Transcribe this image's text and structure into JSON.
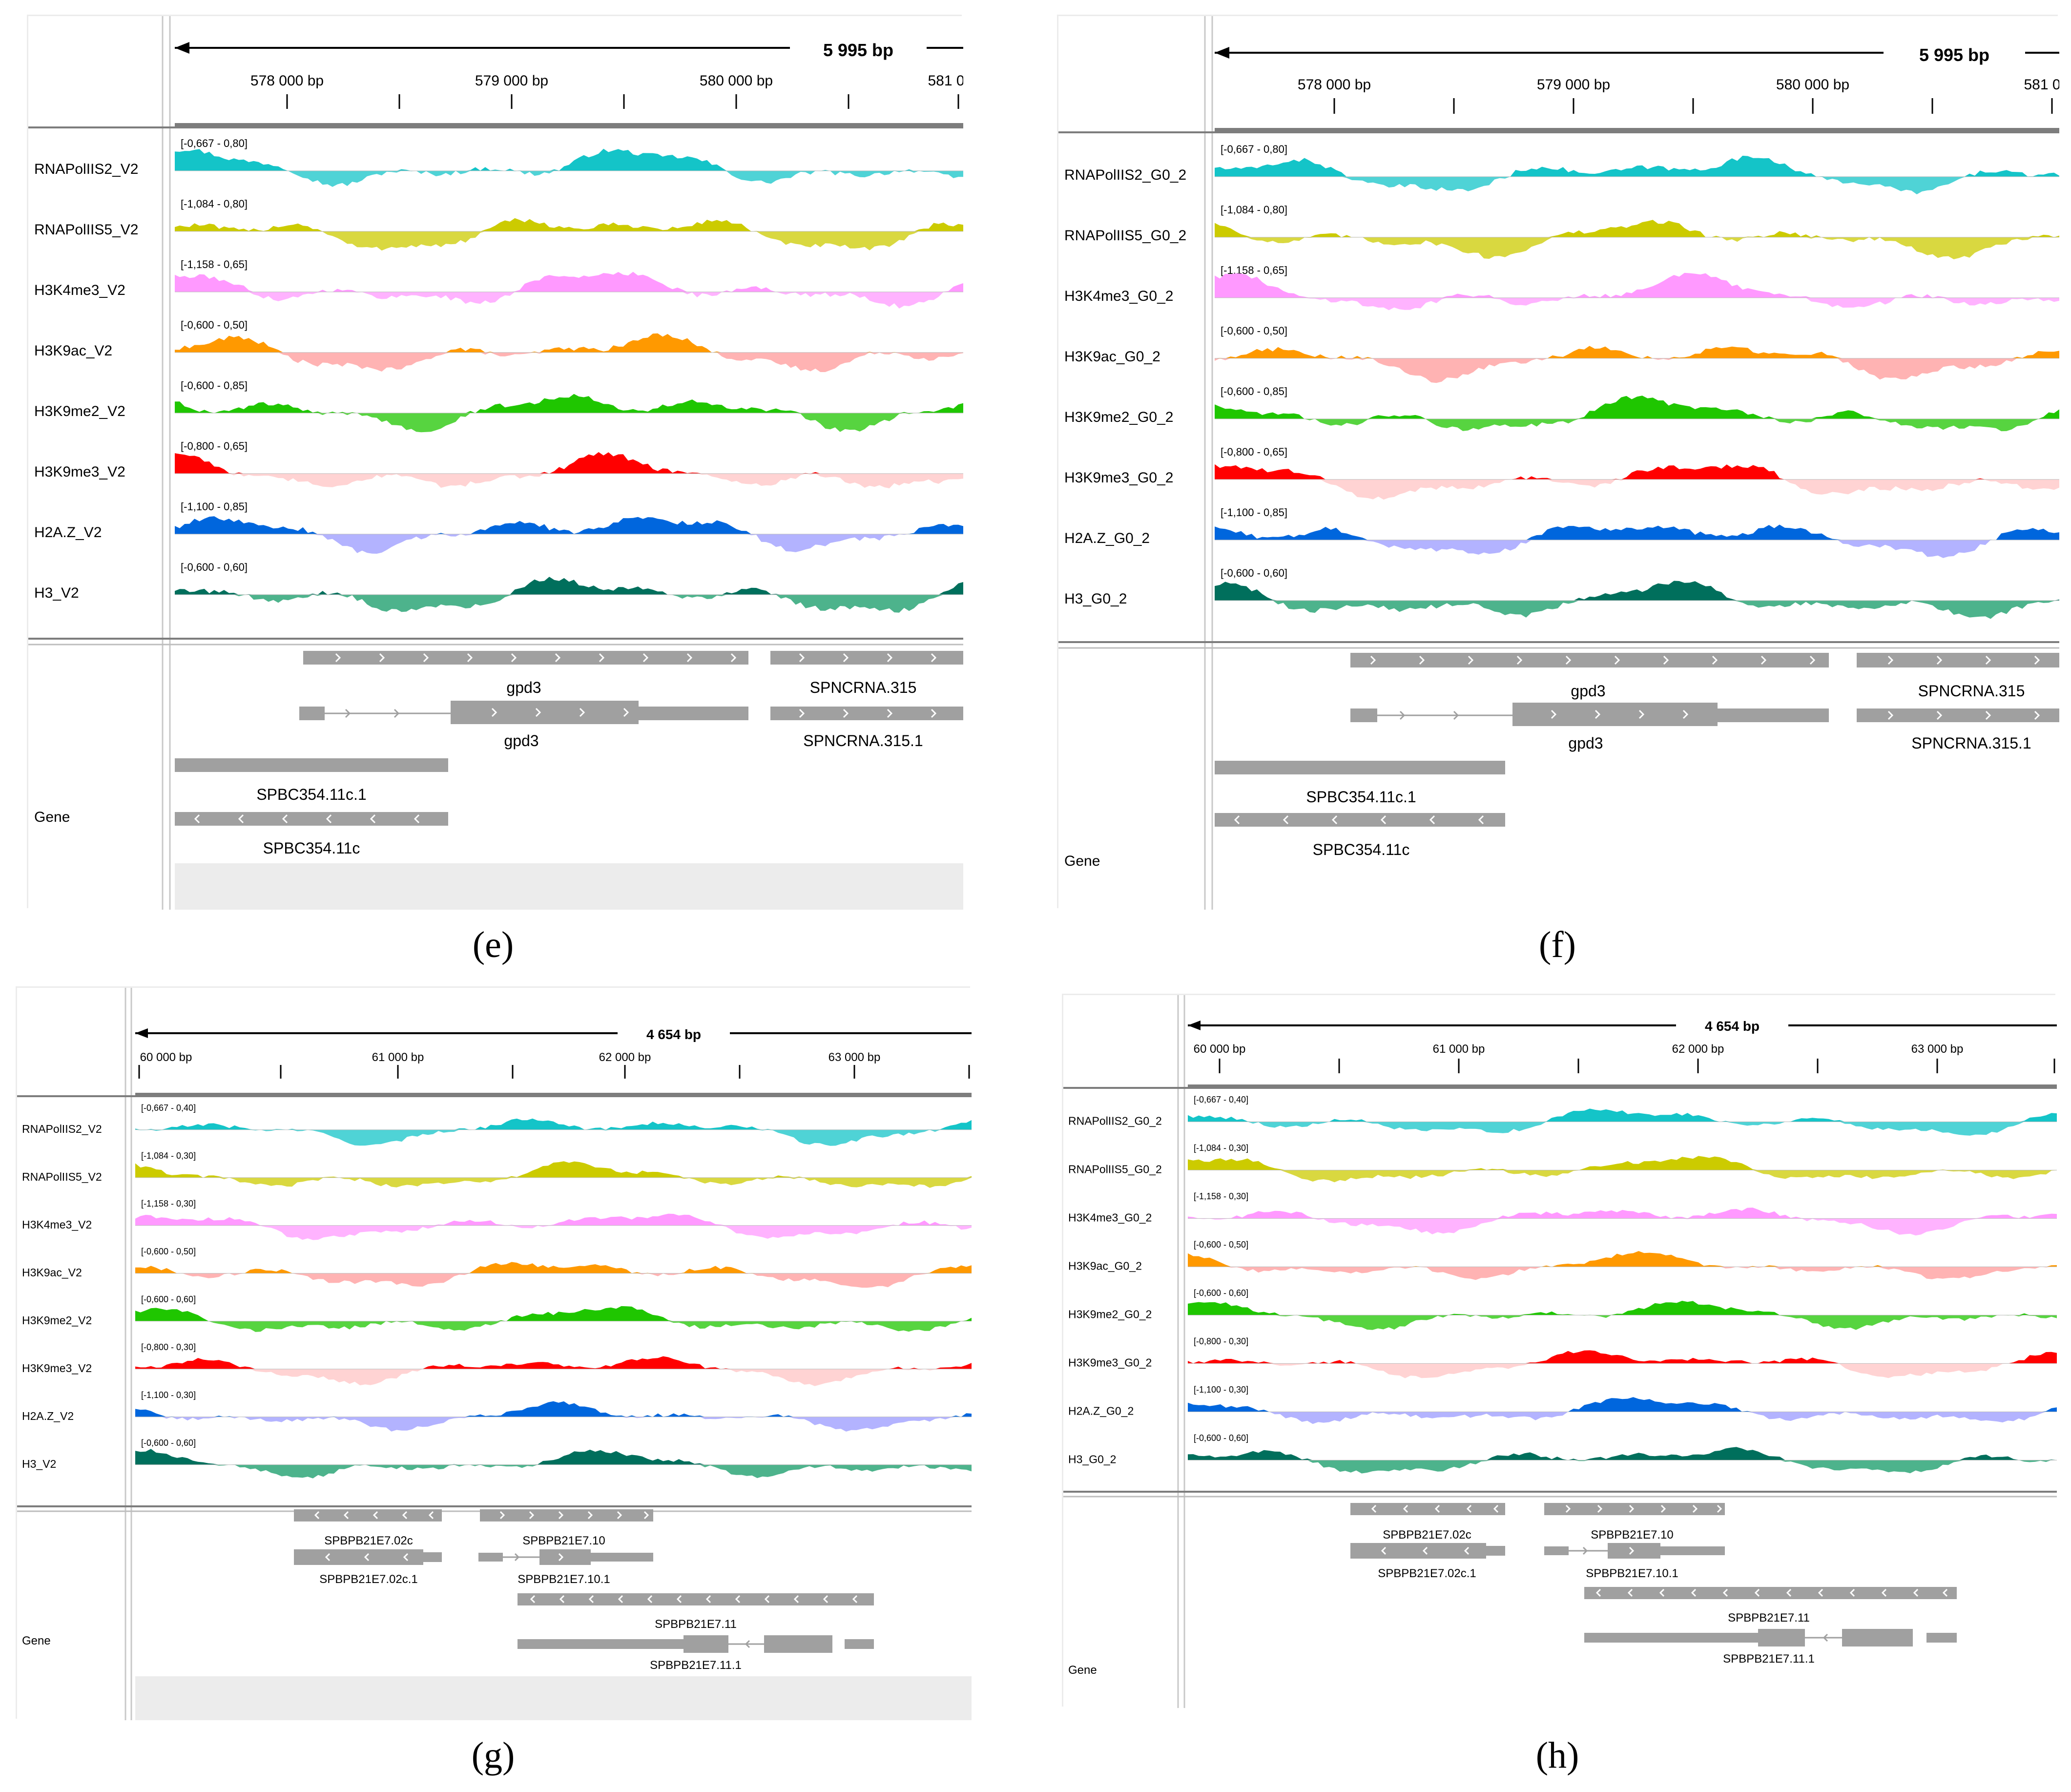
{
  "tracks_default_colors": {
    "pos": [
      "#14c4c8",
      "#cccb00",
      "#ff99ff",
      "#ff9900",
      "#1fc600",
      "#ff0000",
      "#0066dd",
      "#006f5c"
    ],
    "neg": [
      "#14c4c8",
      "#cccb00",
      "#ff99ff",
      "#ff9a9a",
      "#1fc600",
      "#ffc4c4",
      "#9999ff",
      "#119966"
    ]
  },
  "panels": [
    {
      "label": "(e)",
      "span_text": "5 995 bp",
      "ticks": [
        "578 000 bp",
        "579 000 bp",
        "580 000 bp",
        "581 0"
      ],
      "tracks": [
        {
          "name": "RNAPolIIS2_V2",
          "range": "[-0,667 - 0,80]"
        },
        {
          "name": "RNAPolIIS5_V2",
          "range": "[-1,084 - 0,80]"
        },
        {
          "name": "H3K4me3_V2",
          "range": "[-1,158 - 0,65]"
        },
        {
          "name": "H3K9ac_V2",
          "range": "[-0,600 - 0,50]"
        },
        {
          "name": "H3K9me2_V2",
          "range": "[-0,600 - 0,85]"
        },
        {
          "name": "H3K9me3_V2",
          "range": "[-0,800 - 0,65]"
        },
        {
          "name": "H2A.Z_V2",
          "range": "[-1,100 - 0,85]"
        },
        {
          "name": "H3_V2",
          "range": "[-0,600 - 0,60]"
        }
      ],
      "gene_track": "Gene",
      "genes": [
        "gpd3",
        "gpd3",
        "SPNCRNA.315",
        "SPNCRNA.315.1",
        "SPBC354.11c.1",
        "SPBC354.11c"
      ]
    },
    {
      "label": "(f)",
      "span_text": "5 995 bp",
      "ticks": [
        "578 000 bp",
        "579 000 bp",
        "580 000 bp",
        "581 0"
      ],
      "tracks": [
        {
          "name": "RNAPolIIS2_G0_2",
          "range": "[-0,667 - 0,80]"
        },
        {
          "name": "RNAPolIIS5_G0_2",
          "range": "[-1,084 - 0,80]"
        },
        {
          "name": "H3K4me3_G0_2",
          "range": "[-1,158 - 0,65]"
        },
        {
          "name": "H3K9ac_G0_2",
          "range": "[-0,600 - 0,50]"
        },
        {
          "name": "H3K9me2_G0_2",
          "range": "[-0,600 - 0,85]"
        },
        {
          "name": "H3K9me3_G0_2",
          "range": "[-0,800 - 0,65]"
        },
        {
          "name": "H2A.Z_G0_2",
          "range": "[-1,100 - 0,85]"
        },
        {
          "name": "H3_G0_2",
          "range": "[-0,600 - 0,60]"
        }
      ],
      "gene_track": "Gene",
      "genes": [
        "gpd3",
        "gpd3",
        "SPNCRNA.315",
        "SPNCRNA.315.1",
        "SPBC354.11c.1",
        "SPBC354.11c"
      ]
    },
    {
      "label": "(g)",
      "span_text": "4 654 bp",
      "ticks": [
        "60 000 bp",
        "61 000 bp",
        "62 000 bp",
        "63 000 bp"
      ],
      "tracks": [
        {
          "name": "RNAPolIIS2_V2",
          "range": "[-0,667 - 0,40]"
        },
        {
          "name": "RNAPolIIS5_V2",
          "range": "[-1,084 - 0,30]"
        },
        {
          "name": "H3K4me3_V2",
          "range": "[-1,158 - 0,30]"
        },
        {
          "name": "H3K9ac_V2",
          "range": "[-0,600 - 0,50]"
        },
        {
          "name": "H3K9me2_V2",
          "range": "[-0,600 - 0,60]"
        },
        {
          "name": "H3K9me3_V2",
          "range": "[-0,800 - 0,30]"
        },
        {
          "name": "H2A.Z_V2",
          "range": "[-1,100 - 0,30]"
        },
        {
          "name": "H3_V2",
          "range": "[-0,600 - 0,60]"
        }
      ],
      "gene_track": "Gene",
      "genes": [
        "SPBPB21E7.02c",
        "SPBPB21E7.10",
        "SPBPB21E7.02c.1",
        "SPBPB21E7.10.1",
        "SPBPB21E7.11",
        "SPBPB21E7.11.1"
      ]
    },
    {
      "label": "(h)",
      "span_text": "4 654 bp",
      "ticks": [
        "60 000 bp",
        "61 000 bp",
        "62 000 bp",
        "63 000 bp"
      ],
      "tracks": [
        {
          "name": "RNAPolIIS2_G0_2",
          "range": "[-0,667 - 0,40]"
        },
        {
          "name": "RNAPolIIS5_G0_2",
          "range": "[-1,084 - 0,30]"
        },
        {
          "name": "H3K4me3_G0_2",
          "range": "[-1,158 - 0,30]"
        },
        {
          "name": "H3K9ac_G0_2",
          "range": "[-0,600 - 0,50]"
        },
        {
          "name": "H3K9me2_G0_2",
          "range": "[-0,600 - 0,60]"
        },
        {
          "name": "H3K9me3_G0_2",
          "range": "[-0,800 - 0,30]"
        },
        {
          "name": "H2A.Z_G0_2",
          "range": "[-1,100 - 0,30]"
        },
        {
          "name": "H3_G0_2",
          "range": "[-0,600 - 0,60]"
        }
      ],
      "gene_track": "Gene",
      "genes": [
        "SPBPB21E7.02c",
        "SPBPB21E7.10",
        "SPBPB21E7.02c.1",
        "SPBPB21E7.10.1",
        "SPBPB21E7.11",
        "SPBPB21E7.11.1"
      ]
    }
  ]
}
